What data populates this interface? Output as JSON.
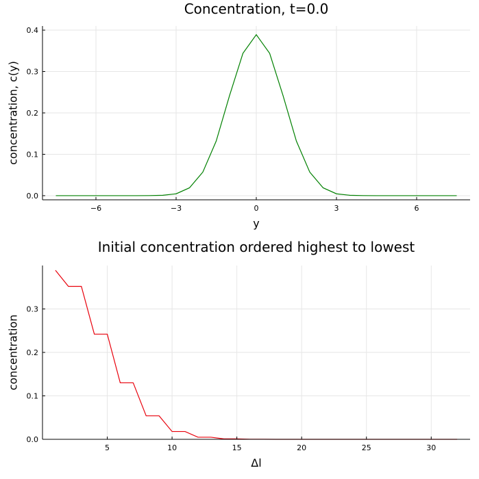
{
  "chart_data": [
    {
      "type": "line",
      "title": "Concentration, t=0.0",
      "xlabel": "y",
      "ylabel": "concentration, c(y)",
      "xlim": [
        -8,
        8
      ],
      "ylim": [
        -0.01,
        0.41
      ],
      "xticks": [
        -6,
        -3,
        0,
        3,
        6
      ],
      "xtick_labels": [
        "−6",
        "−3",
        "0",
        "3",
        "6"
      ],
      "yticks": [
        0.0,
        0.1,
        0.2,
        0.3,
        0.4
      ],
      "ytick_labels": [
        "0.0",
        "0.1",
        "0.2",
        "0.3",
        "0.4"
      ],
      "grid": true,
      "legend": "none",
      "color": "#008000",
      "series": [
        {
          "x": [
            -7.5,
            -7.0,
            -6.5,
            -6.0,
            -5.5,
            -5.0,
            -4.5,
            -4.0,
            -3.5,
            -3.0,
            -2.5,
            -2.0,
            -1.5,
            -1.0,
            -0.5,
            0.0,
            0.5,
            1.0,
            1.5,
            2.0,
            2.5,
            3.0,
            3.5,
            4.0,
            4.5,
            5.0,
            5.5,
            6.0,
            6.5,
            7.0,
            7.5
          ],
          "values": [
            0.0,
            0.0,
            0.0,
            0.0,
            0.0,
            0.0,
            0.0,
            0.0002,
            0.001,
            0.0045,
            0.019,
            0.057,
            0.132,
            0.242,
            0.344,
            0.389,
            0.344,
            0.242,
            0.132,
            0.057,
            0.019,
            0.0045,
            0.001,
            0.0002,
            0.0,
            0.0,
            0.0,
            0.0,
            0.0,
            0.0,
            0.0
          ]
        }
      ]
    },
    {
      "type": "line",
      "title": "Initial concentration ordered highest to lowest",
      "xlabel": "Δl",
      "ylabel": "concentration",
      "xlim": [
        0,
        33
      ],
      "ylim": [
        0,
        0.4
      ],
      "xticks": [
        5,
        10,
        15,
        20,
        25,
        30
      ],
      "xtick_labels": [
        "5",
        "10",
        "15",
        "20",
        "25",
        "30"
      ],
      "yticks": [
        0.0,
        0.1,
        0.2,
        0.3
      ],
      "ytick_labels": [
        "0.0",
        "0.1",
        "0.2",
        "0.3"
      ],
      "grid": true,
      "legend": "none",
      "color": "#e8000b",
      "series": [
        {
          "x": [
            1,
            2,
            3,
            4,
            5,
            6,
            7,
            8,
            9,
            10,
            11,
            12,
            13,
            14,
            15,
            16,
            17,
            18,
            19,
            20,
            21,
            22,
            23,
            24,
            25,
            26,
            27,
            28,
            29,
            30,
            31,
            32
          ],
          "values": [
            0.389,
            0.352,
            0.352,
            0.242,
            0.242,
            0.13,
            0.13,
            0.054,
            0.054,
            0.018,
            0.018,
            0.0048,
            0.0048,
            0.001,
            0.001,
            0.0002,
            0.0002,
            0.0,
            0.0,
            0.0,
            0.0,
            0.0,
            0.0,
            0.0,
            0.0,
            0.0,
            0.0,
            0.0,
            0.0,
            0.0,
            0.0,
            0.0
          ]
        }
      ]
    }
  ]
}
